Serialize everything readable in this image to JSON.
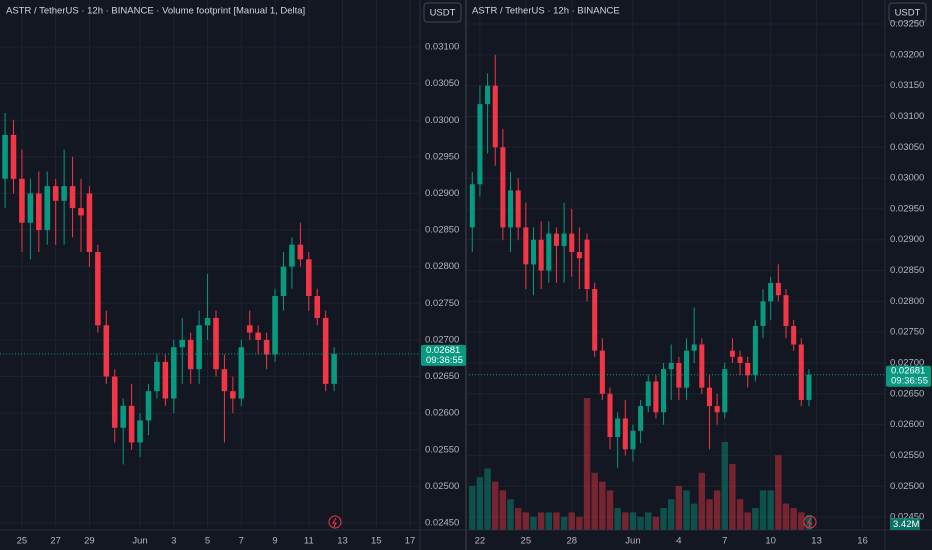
{
  "chart_data": [
    {
      "type": "candlestick",
      "title": "ASTR / TetherUS · 12h · BINANCE · Volume footprint [Manual 1, Delta]",
      "currency": "USDT",
      "x": [
        24,
        24.5,
        25,
        25.5,
        26,
        26.5,
        27,
        27.5,
        28,
        28.5,
        29,
        29.5,
        30,
        30.5,
        31,
        31.5,
        32,
        32.5,
        33,
        33.5,
        34,
        34.5,
        35,
        35.5,
        36,
        36.5,
        37,
        37.5,
        38,
        38.5,
        39,
        39.5,
        40,
        40.5,
        41,
        41.5,
        42,
        42.5,
        43,
        43.5
      ],
      "open": [
        0.0292,
        0.0298,
        0.0292,
        0.0286,
        0.029,
        0.0285,
        0.0291,
        0.0289,
        0.0291,
        0.0288,
        0.029,
        0.0282,
        0.0272,
        0.0265,
        0.0258,
        0.0261,
        0.0256,
        0.0259,
        0.0263,
        0.0267,
        0.0262,
        0.0269,
        0.027,
        0.0266,
        0.0272,
        0.0273,
        0.0266,
        0.0263,
        0.0262,
        0.0272,
        0.0271,
        0.027,
        0.0268,
        0.0276,
        0.028,
        0.0283,
        0.0281,
        0.0276,
        0.0273,
        0.0264
      ],
      "high": [
        0.0301,
        0.03,
        0.0296,
        0.0292,
        0.0293,
        0.0293,
        0.0292,
        0.0296,
        0.0295,
        0.0292,
        0.0291,
        0.0283,
        0.0274,
        0.0266,
        0.0262,
        0.0264,
        0.026,
        0.0264,
        0.0268,
        0.0268,
        0.027,
        0.0273,
        0.0271,
        0.0274,
        0.0279,
        0.0274,
        0.0268,
        0.0265,
        0.027,
        0.0274,
        0.0272,
        0.0271,
        0.0277,
        0.0282,
        0.0284,
        0.0286,
        0.0282,
        0.0277,
        0.0274,
        0.0269
      ],
      "low": [
        0.0288,
        0.029,
        0.0282,
        0.0281,
        0.0282,
        0.0283,
        0.0283,
        0.0283,
        0.0284,
        0.0282,
        0.028,
        0.0271,
        0.0264,
        0.0256,
        0.0253,
        0.0255,
        0.0254,
        0.0257,
        0.0262,
        0.0261,
        0.026,
        0.0264,
        0.0264,
        0.0264,
        0.027,
        0.0265,
        0.0256,
        0.026,
        0.0261,
        0.027,
        0.0268,
        0.0266,
        0.0267,
        0.0274,
        0.0277,
        0.028,
        0.0274,
        0.0272,
        0.0263,
        0.0263
      ],
      "close": [
        0.0298,
        0.0292,
        0.0286,
        0.029,
        0.0285,
        0.0291,
        0.0289,
        0.0291,
        0.0288,
        0.0287,
        0.0282,
        0.0272,
        0.0265,
        0.0258,
        0.0261,
        0.0256,
        0.0259,
        0.0263,
        0.0267,
        0.0262,
        0.0269,
        0.027,
        0.0266,
        0.0272,
        0.0273,
        0.0266,
        0.0263,
        0.0262,
        0.0269,
        0.0271,
        0.027,
        0.0268,
        0.0276,
        0.028,
        0.0283,
        0.0281,
        0.0276,
        0.0273,
        0.0264,
        0.02681
      ],
      "last_price_label": "0.02681",
      "countdown": "09:36:55",
      "up_color": "#089981",
      "down_color": "#f23645",
      "xlim": [
        23.7,
        48.59
      ],
      "ylim": [
        0.024404,
        0.031642
      ],
      "xticks": [
        25,
        27,
        29,
        {
          "value": 32,
          "label": "Jun"
        },
        {
          "value": 34,
          "label": "3"
        },
        {
          "value": 36,
          "label": "5"
        },
        {
          "value": 38,
          "label": "7"
        },
        {
          "value": 40,
          "label": "9"
        },
        {
          "value": 42,
          "label": "11"
        },
        {
          "value": 44,
          "label": "13"
        },
        {
          "value": 46,
          "label": "15"
        },
        {
          "value": 48,
          "label": "17"
        }
      ],
      "yticks": [
        {
          "value": 0.0245,
          "label": "0.02450"
        },
        {
          "value": 0.025,
          "label": "0.02500"
        },
        {
          "value": 0.0255,
          "label": "0.02550"
        },
        {
          "value": 0.026,
          "label": "0.02600"
        },
        {
          "value": 0.0265,
          "label": "0.02650"
        },
        {
          "value": 0.027,
          "label": "0.02700"
        },
        {
          "value": 0.0275,
          "label": "0.02750"
        },
        {
          "value": 0.028,
          "label": "0.02800"
        },
        {
          "value": 0.0285,
          "label": "0.02850"
        },
        {
          "value": 0.029,
          "label": "0.02900"
        },
        {
          "value": 0.0295,
          "label": "0.02950"
        },
        {
          "value": 0.03,
          "label": "0.03000"
        },
        {
          "value": 0.0305,
          "label": "0.03050"
        },
        {
          "value": 0.031,
          "label": "0.03100"
        }
      ],
      "grid": true
    },
    {
      "type": "candlestick",
      "title": "ASTR / TetherUS · 12h · BINANCE",
      "currency": "USDT",
      "x": [
        21.5,
        22,
        22.5,
        23,
        23.5,
        24,
        24.5,
        25,
        25.5,
        26,
        26.5,
        27,
        27.5,
        28,
        28.5,
        29,
        29.5,
        30,
        30.5,
        31,
        31.5,
        32,
        32.5,
        33,
        33.5,
        34,
        34.5,
        35,
        35.5,
        36,
        36.5,
        37,
        37.5,
        38,
        38.5,
        39,
        39.5,
        40,
        40.5,
        41,
        41.5,
        42,
        42.5,
        43,
        43.5
      ],
      "open": [
        0.0292,
        0.0299,
        0.0312,
        0.0315,
        0.0305,
        0.0292,
        0.0298,
        0.0292,
        0.0286,
        0.029,
        0.0285,
        0.0291,
        0.0289,
        0.0291,
        0.0288,
        0.029,
        0.0282,
        0.0272,
        0.0265,
        0.0258,
        0.0261,
        0.0256,
        0.0259,
        0.0263,
        0.0267,
        0.0262,
        0.0269,
        0.027,
        0.0266,
        0.0272,
        0.0273,
        0.0266,
        0.0263,
        0.0262,
        0.0272,
        0.0271,
        0.027,
        0.0268,
        0.0276,
        0.028,
        0.0283,
        0.0281,
        0.0276,
        0.0273,
        0.0264
      ],
      "high": [
        0.0301,
        0.0315,
        0.0317,
        0.032,
        0.0308,
        0.0301,
        0.03,
        0.0296,
        0.0292,
        0.0293,
        0.0293,
        0.0292,
        0.0296,
        0.0295,
        0.0292,
        0.0291,
        0.0283,
        0.0274,
        0.0266,
        0.0262,
        0.0264,
        0.026,
        0.0264,
        0.0268,
        0.0268,
        0.027,
        0.0273,
        0.0271,
        0.0274,
        0.0279,
        0.0274,
        0.0268,
        0.0265,
        0.027,
        0.0274,
        0.0272,
        0.0271,
        0.0277,
        0.0282,
        0.0284,
        0.0286,
        0.0282,
        0.0277,
        0.0274,
        0.0269
      ],
      "low": [
        0.0288,
        0.0297,
        0.0304,
        0.0302,
        0.029,
        0.0288,
        0.029,
        0.0282,
        0.0281,
        0.0282,
        0.0283,
        0.0283,
        0.0283,
        0.0284,
        0.0282,
        0.028,
        0.0271,
        0.0264,
        0.0256,
        0.0253,
        0.0255,
        0.0254,
        0.0257,
        0.0262,
        0.0261,
        0.026,
        0.0264,
        0.0264,
        0.0264,
        0.027,
        0.0265,
        0.0256,
        0.026,
        0.0261,
        0.027,
        0.0268,
        0.0266,
        0.0267,
        0.0274,
        0.0277,
        0.028,
        0.0274,
        0.0272,
        0.0263,
        0.0263
      ],
      "close": [
        0.0299,
        0.0312,
        0.0315,
        0.0305,
        0.0292,
        0.0298,
        0.0292,
        0.0286,
        0.029,
        0.0285,
        0.0291,
        0.0289,
        0.0291,
        0.0288,
        0.0287,
        0.0282,
        0.0272,
        0.0265,
        0.0258,
        0.0261,
        0.0256,
        0.0259,
        0.0263,
        0.0267,
        0.0262,
        0.0269,
        0.027,
        0.0266,
        0.0272,
        0.0273,
        0.0266,
        0.0263,
        0.0262,
        0.0269,
        0.0271,
        0.027,
        0.0268,
        0.0276,
        0.028,
        0.0283,
        0.0281,
        0.0276,
        0.0273,
        0.0264,
        0.02681
      ],
      "volume": [
        10,
        12,
        14,
        11,
        9,
        7,
        5,
        4,
        3,
        4,
        4,
        4,
        3,
        4,
        3,
        30,
        13,
        11,
        9,
        5,
        4,
        4,
        3,
        4,
        3,
        5,
        7,
        10,
        9,
        6,
        13,
        7,
        9,
        20,
        15,
        7,
        4,
        5,
        9,
        9,
        17,
        6,
        5,
        4,
        3.42
      ],
      "volume_last_label": "3.42M",
      "last_price_label": "0.02681",
      "countdown": "09:36:55",
      "up_color": "#089981",
      "down_color": "#f23645",
      "xlim": [
        21.09,
        48.47
      ],
      "ylim": [
        0.02429,
        0.03289
      ],
      "xticks": [
        22,
        25,
        28,
        {
          "value": 32,
          "label": "Jun"
        },
        {
          "value": 35,
          "label": "4"
        },
        {
          "value": 38,
          "label": "7"
        },
        {
          "value": 41,
          "label": "10"
        },
        {
          "value": 44,
          "label": "13"
        },
        {
          "value": 47,
          "label": "16"
        }
      ],
      "yticks": [
        {
          "value": 0.0245,
          "label": "0.02450"
        },
        {
          "value": 0.025,
          "label": "0.02500"
        },
        {
          "value": 0.0255,
          "label": "0.02550"
        },
        {
          "value": 0.026,
          "label": "0.02600"
        },
        {
          "value": 0.0265,
          "label": "0.02650"
        },
        {
          "value": 0.027,
          "label": "0.02700"
        },
        {
          "value": 0.0275,
          "label": "0.02750"
        },
        {
          "value": 0.028,
          "label": "0.02800"
        },
        {
          "value": 0.0285,
          "label": "0.02850"
        },
        {
          "value": 0.029,
          "label": "0.02900"
        },
        {
          "value": 0.0295,
          "label": "0.02950"
        },
        {
          "value": 0.03,
          "label": "0.03000"
        },
        {
          "value": 0.0305,
          "label": "0.03050"
        },
        {
          "value": 0.031,
          "label": "0.03100"
        },
        {
          "value": 0.0315,
          "label": "0.03150"
        },
        {
          "value": 0.032,
          "label": "0.03200"
        },
        {
          "value": 0.0325,
          "label": "0.03250"
        }
      ],
      "grid": true
    }
  ]
}
